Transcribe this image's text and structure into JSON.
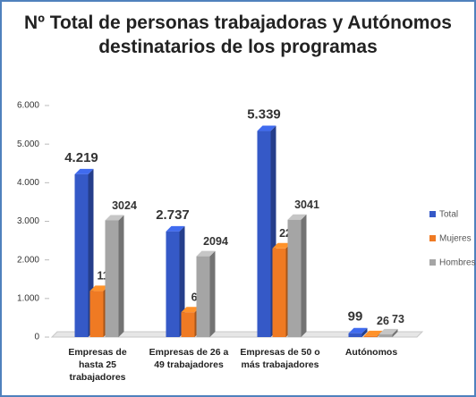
{
  "chart_data": {
    "type": "bar",
    "title": "Nº Total de personas trabajadoras y Autónomos destinatarios de los programas",
    "categories": [
      "Empresas de hasta 25 trabajadores",
      "Empresas de 26 a 49 trabajadores",
      "Empresas de 50 o más trabajadores",
      "Autónomos"
    ],
    "series": [
      {
        "name": "Total",
        "color": "#3559c7",
        "values": [
          4219,
          2737,
          5339,
          99
        ],
        "value_labels": [
          "4.219",
          "2.737",
          "5.339",
          "99"
        ]
      },
      {
        "name": "Mujeres",
        "color": "#ef7a23",
        "values": [
          1195,
          643,
          2298,
          26
        ]
      },
      {
        "name": "Hombres",
        "color": "#a5a5a5",
        "values": [
          3024,
          2094,
          3041,
          73
        ]
      }
    ],
    "ylim": [
      0,
      6000
    ],
    "yticks": [
      0,
      {
        "value": 1000,
        "label": "1.000"
      },
      {
        "value": 2000,
        "label": "2.000"
      },
      {
        "value": 3000,
        "label": "3.000"
      },
      {
        "value": 4000,
        "label": "4.000"
      },
      {
        "value": 5000,
        "label": "5.000"
      },
      {
        "value": 6000,
        "label": "6.000"
      }
    ],
    "grid": false,
    "legend": "right"
  }
}
